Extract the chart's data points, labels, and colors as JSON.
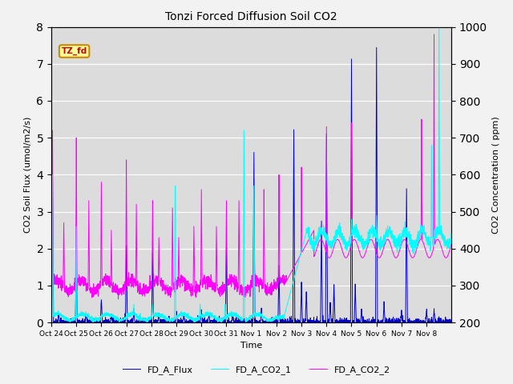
{
  "title": "Tonzi Forced Diffusion Soil CO2",
  "ylabel_left": "CO2 Soil Flux (umol/m2/s)",
  "ylabel_right": "CO2 Concentration ( ppm)",
  "xlabel": "Time",
  "ylim_left": [
    0.0,
    8.0
  ],
  "ylim_right": [
    200,
    1000
  ],
  "yticks_left": [
    0.0,
    1.0,
    2.0,
    3.0,
    4.0,
    5.0,
    6.0,
    7.0,
    8.0
  ],
  "yticks_right": [
    200,
    300,
    400,
    500,
    600,
    700,
    800,
    900,
    1000
  ],
  "xtick_labels": [
    "Oct 24",
    "Oct 25",
    "Oct 26",
    "Oct 27",
    "Oct 28",
    "Oct 29",
    "Oct 30",
    "Oct 31",
    "Nov 1",
    "Nov 2",
    "Nov 3",
    "Nov 4",
    "Nov 5",
    "Nov 6",
    "Nov 7",
    "Nov 8"
  ],
  "label_flux": "FD_A_Flux",
  "label_co2_1": "FD_A_CO2_1",
  "label_co2_2": "FD_A_CO2_2",
  "color_flux": "#0000CC",
  "color_co2_1": "#00FFFF",
  "color_co2_2": "#FF00FF",
  "tag_text": "TZ_fd",
  "tag_facecolor": "#FFFF99",
  "tag_edgecolor": "#CC8800",
  "tag_textcolor": "#CC0000",
  "bg_color": "#DCDCDC",
  "fig_facecolor": "#F2F2F2",
  "linewidth_flux": 0.7,
  "linewidth_co2": 0.7,
  "n_points": 2880
}
